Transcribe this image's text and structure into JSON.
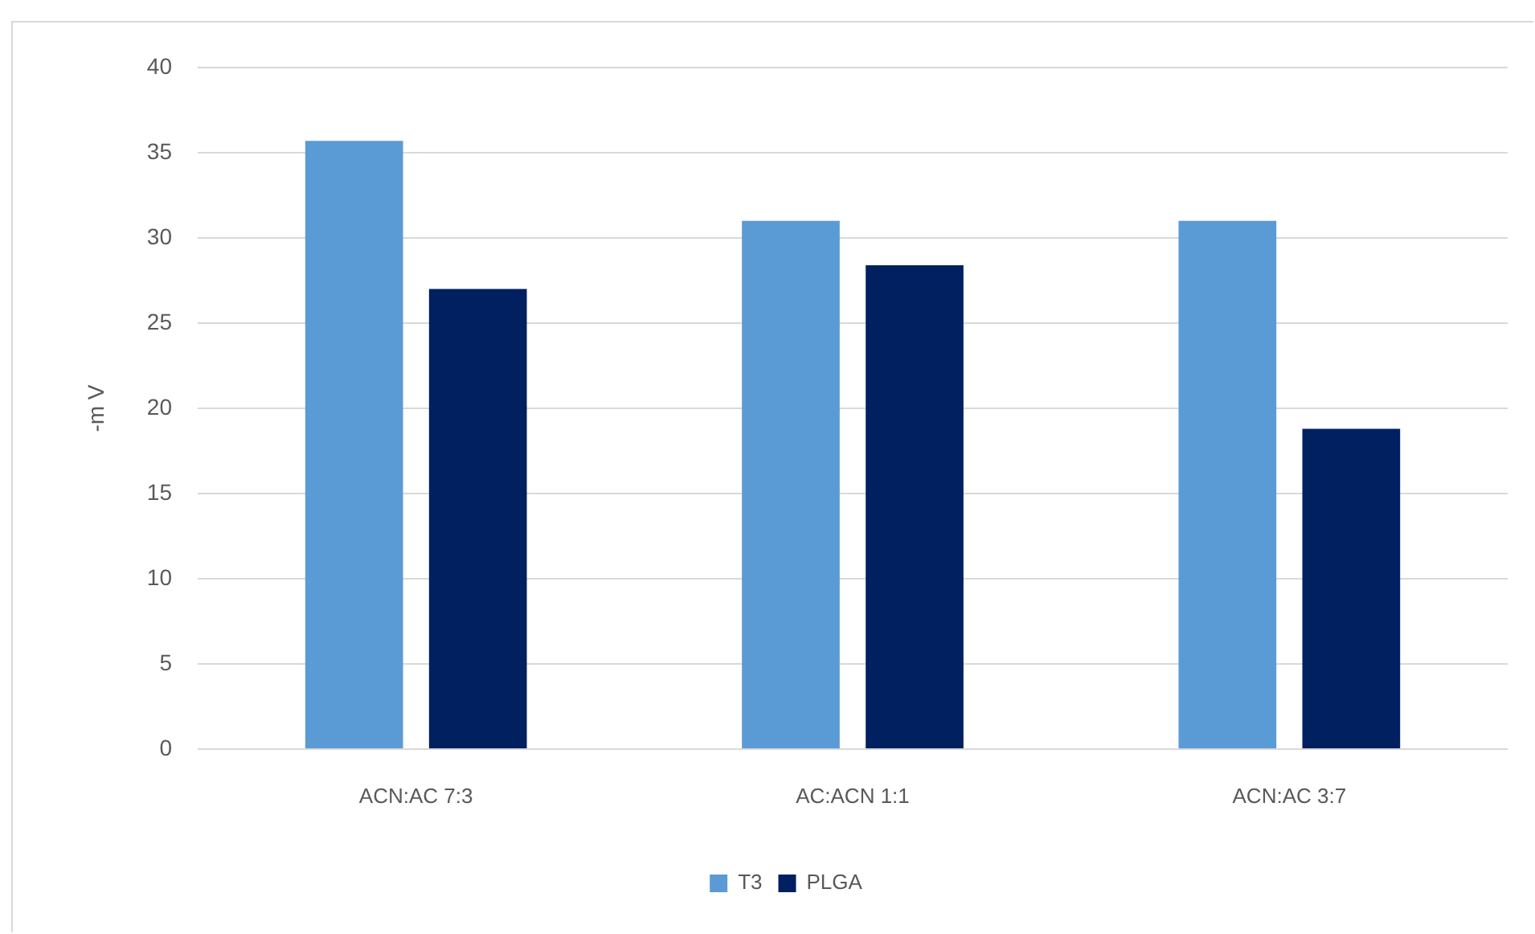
{
  "chart_data": {
    "type": "bar",
    "categories": [
      "ACN:AC 7:3",
      "AC:ACN 1:1",
      "ACN:AC 3:7"
    ],
    "series": [
      {
        "name": "T3",
        "color": "#5b9bd5",
        "values": [
          35.7,
          31,
          31
        ]
      },
      {
        "name": "PLGA",
        "color": "#002060",
        "values": [
          27,
          28.4,
          18.8
        ]
      }
    ],
    "ylabel": "-m V",
    "ylim": [
      0,
      40
    ],
    "yticks": [
      0,
      5,
      10,
      15,
      20,
      25,
      30,
      35,
      40
    ],
    "grid": "y",
    "legend": "bottom"
  }
}
